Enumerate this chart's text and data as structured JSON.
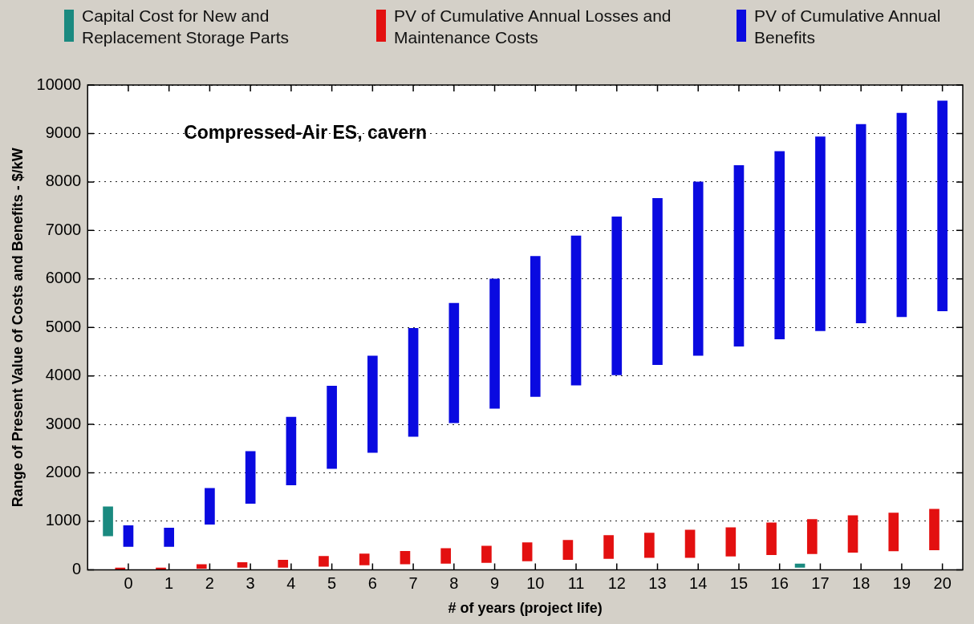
{
  "chart_data": {
    "type": "bar",
    "title": "Compressed-Air ES, cavern",
    "xlabel": "# of years (project life)",
    "ylabel": "Range of Present Value of Costs and Benefits - $/kW",
    "xlim": [
      -1,
      20.5
    ],
    "xticks": [
      0,
      1,
      2,
      3,
      4,
      5,
      6,
      7,
      8,
      9,
      10,
      11,
      12,
      13,
      14,
      15,
      16,
      17,
      18,
      19,
      20
    ],
    "ylim": [
      0,
      10000
    ],
    "yticks": [
      0,
      1000,
      2000,
      3000,
      4000,
      5000,
      6000,
      7000,
      8000,
      9000,
      10000
    ],
    "grid": "y",
    "legend": "top",
    "line_style": "dotted",
    "series": [
      {
        "name": "Capital Cost for New and Replacement Storage Parts",
        "color": "#1a8a80",
        "x": [
          -0.5,
          16.5
        ],
        "base": [
          700,
          50
        ],
        "values": [
          600,
          70
        ]
      },
      {
        "name": "PV of Cumulative Annual Losses and Maintenance Costs",
        "color": "#e31010",
        "x": [
          -0.2,
          0.8,
          1.8,
          2.8,
          3.8,
          4.8,
          5.8,
          6.8,
          7.8,
          8.8,
          9.8,
          10.8,
          11.8,
          12.8,
          13.8,
          14.8,
          15.8,
          16.8,
          17.8,
          18.8,
          19.8
        ],
        "base": [
          0,
          0,
          30,
          50,
          50,
          70,
          100,
          120,
          130,
          150,
          180,
          210,
          230,
          250,
          250,
          280,
          310,
          330,
          360,
          390,
          410
        ],
        "values": [
          40,
          40,
          80,
          100,
          150,
          210,
          230,
          260,
          310,
          340,
          380,
          400,
          480,
          510,
          570,
          590,
          660,
          710,
          760,
          780,
          840
        ]
      },
      {
        "name": "PV of Cumulative Annual Benefits",
        "color": "#0a0ae0",
        "x": [
          0,
          1,
          2,
          3,
          4,
          5,
          6,
          7,
          8,
          9,
          10,
          11,
          12,
          13,
          14,
          15,
          16,
          17,
          18,
          19,
          20
        ],
        "base": [
          480,
          480,
          940,
          1370,
          1750,
          2090,
          2420,
          2750,
          3030,
          3330,
          3575,
          3810,
          4020,
          4230,
          4420,
          4610,
          4760,
          4930,
          5090,
          5220,
          5340
        ],
        "values": [
          430,
          380,
          740,
          1070,
          1400,
          1700,
          1990,
          2230,
          2470,
          2670,
          2890,
          3080,
          3260,
          3430,
          3580,
          3730,
          3870,
          4000,
          4100,
          4200,
          4330
        ]
      }
    ]
  }
}
